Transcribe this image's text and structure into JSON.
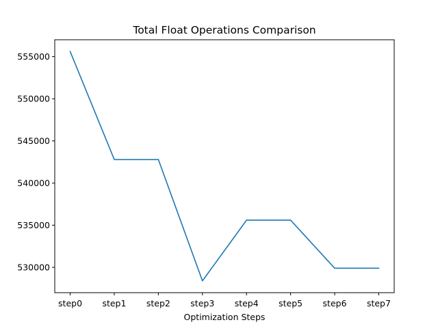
{
  "chart_data": {
    "type": "line",
    "title": "Total Float Operations Comparison",
    "xlabel": "Optimization Steps",
    "ylabel": "",
    "categories": [
      "step0",
      "step1",
      "step2",
      "step3",
      "step4",
      "step5",
      "step6",
      "step7"
    ],
    "series": [
      {
        "values": [
          555600,
          542800,
          542800,
          528400,
          535600,
          535600,
          529900,
          529900
        ],
        "color": "#1f77b4"
      }
    ],
    "ylim": [
      527000,
      557000
    ],
    "yticks": [
      530000,
      535000,
      540000,
      545000,
      550000,
      555000
    ],
    "ytick_labels": [
      "530000",
      "535000",
      "540000",
      "545000",
      "550000",
      "555000"
    ],
    "grid": false,
    "legend": "none"
  }
}
